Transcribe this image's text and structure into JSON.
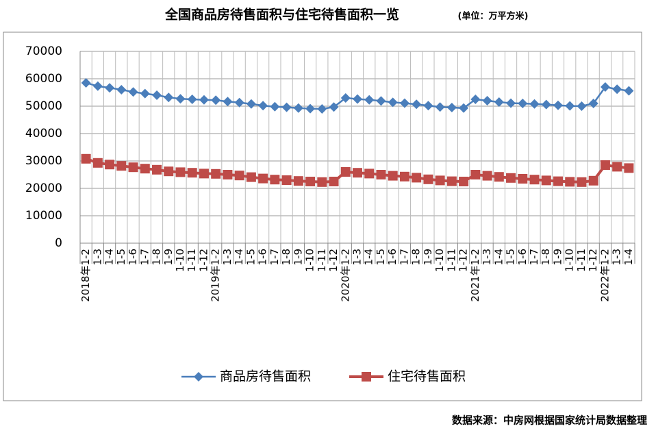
{
  "chart_data": {
    "type": "line",
    "title": "全国商品房待售面积与住宅待售面积一览",
    "subtitle": "(单位：万平方米)",
    "source": "数据来源：中房网根据国家统计局数据整理",
    "categories": [
      "2018年1-2",
      "1-3",
      "1-4",
      "1-5",
      "1-6",
      "1-7",
      "1-8",
      "1-9",
      "1-10",
      "1-11",
      "1-12",
      "2019年1-2",
      "1-3",
      "1-4",
      "1-5",
      "1-6",
      "1-7",
      "1-8",
      "1-9",
      "1-10",
      "1-11",
      "1-12",
      "2020年1-2",
      "1-3",
      "1-4",
      "1-5",
      "1-6",
      "1-7",
      "1-8",
      "1-9",
      "1-10",
      "1-11",
      "1-12",
      "2021年1-2",
      "1-3",
      "1-4",
      "1-5",
      "1-6",
      "1-7",
      "1-8",
      "1-9",
      "1-10",
      "1-11",
      "1-12",
      "2022年1-2",
      "1-3",
      "1-4"
    ],
    "series": [
      {
        "name": "商品房待售面积",
        "color": "#4a7ebb",
        "marker": "diamond",
        "values": [
          58500,
          57300,
          56700,
          56000,
          55200,
          54600,
          54000,
          53200,
          52700,
          52500,
          52300,
          52200,
          51700,
          51300,
          50800,
          50200,
          49800,
          49600,
          49300,
          49100,
          49000,
          49700,
          53000,
          52600,
          52300,
          51900,
          51400,
          51100,
          50700,
          50200,
          49700,
          49500,
          49300,
          52500,
          52000,
          51500,
          51100,
          51000,
          50800,
          50600,
          50300,
          50100,
          50000,
          51000,
          57000,
          56200,
          55600
        ]
      },
      {
        "name": "住宅待售面积",
        "color": "#be4b48",
        "marker": "square",
        "values": [
          30800,
          29300,
          28700,
          28200,
          27700,
          27200,
          26800,
          26200,
          25900,
          25700,
          25400,
          25300,
          25000,
          24700,
          24100,
          23600,
          23200,
          23000,
          22700,
          22500,
          22300,
          22500,
          26000,
          25700,
          25400,
          25000,
          24600,
          24300,
          23900,
          23300,
          22900,
          22600,
          22500,
          25000,
          24600,
          24200,
          23800,
          23500,
          23200,
          22900,
          22600,
          22400,
          22300,
          22800,
          28500,
          27900,
          27400
        ]
      }
    ],
    "ylim": [
      0,
      70000
    ],
    "yticks": [
      0,
      10000,
      20000,
      30000,
      40000,
      50000,
      60000,
      70000
    ],
    "grid": true
  }
}
